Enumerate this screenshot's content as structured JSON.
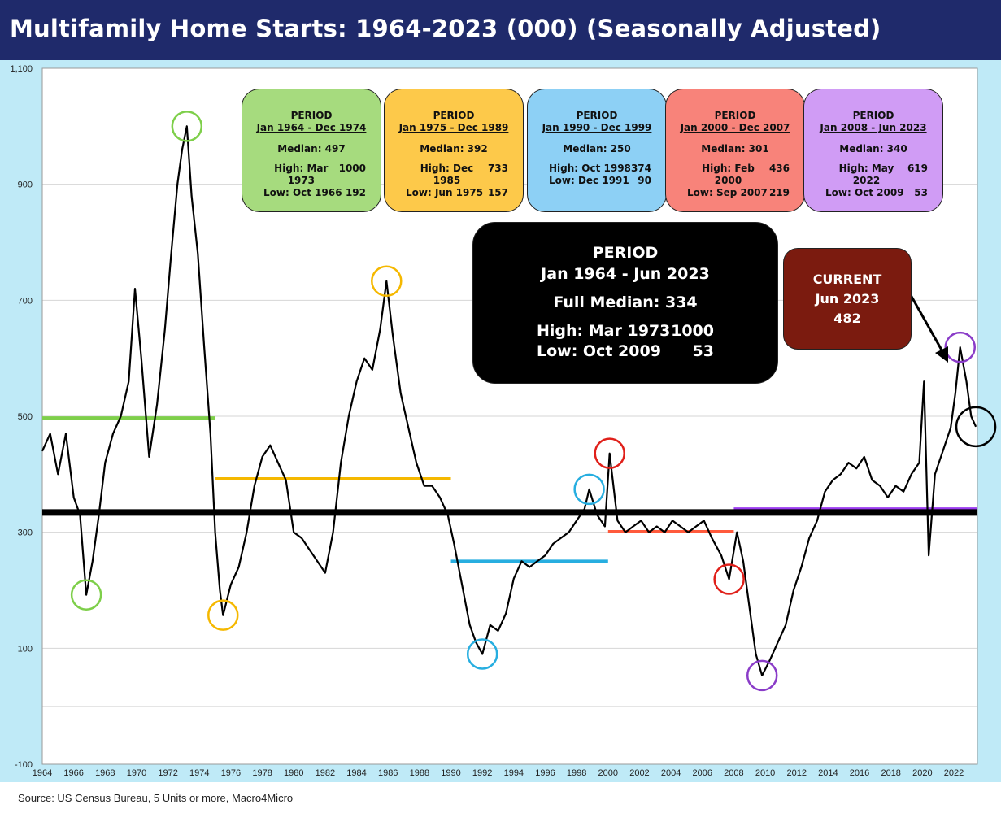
{
  "title": "Multifamily Home Starts: 1964-2023 (000) (Seasonally Adjusted)",
  "source": "Source: US Census Bureau, 5 Units or more, Macro4Micro",
  "period_boxes": [
    {
      "title": "PERIOD",
      "range": "Jan 1964 - Dec 1974",
      "median": "Median: 497",
      "high_label": "High:  Mar 1973",
      "high_value": "1000",
      "low_label": "Low:   Oct 1966",
      "low_value": "192",
      "color": "#a6db7e"
    },
    {
      "title": "PERIOD",
      "range": "Jan 1975 - Dec 1989",
      "median": "Median: 392",
      "high_label": "High:  Dec 1985",
      "high_value": "733",
      "low_label": "Low:  Jun 1975",
      "low_value": "157",
      "color": "#fdc94a"
    },
    {
      "title": "PERIOD",
      "range": "Jan 1990 - Dec 1999",
      "median": "Median: 250",
      "high_label": "High:  Oct 1998",
      "high_value": "374",
      "low_label": "Low:  Dec 1991",
      "low_value": "90",
      "color": "#8dd0f5"
    },
    {
      "title": "PERIOD",
      "range": "Jan 2000 - Dec 2007",
      "median": "Median: 301",
      "high_label": "High:  Feb 2000",
      "high_value": "436",
      "low_label": "Low:  Sep 2007",
      "low_value": "219",
      "color": "#f8837a"
    },
    {
      "title": "PERIOD",
      "range": "Jan 2008 - Jun 2023",
      "median": "Median: 340",
      "high_label": "High:  May 2022",
      "high_value": "619",
      "low_label": "Low:  Oct 2009",
      "low_value": "53",
      "color": "#d09cf5"
    }
  ],
  "full_box": {
    "title": "PERIOD",
    "range": "Jan 1964 - Jun 2023",
    "median": "Full Median: 334",
    "high_label": "High:  Mar 1973",
    "high_value": "1000",
    "low_label": "Low:  Oct 2009",
    "low_value": "53"
  },
  "current_box": {
    "title": "CURRENT",
    "date": "Jun 2023",
    "value": "482"
  },
  "chart_data": {
    "type": "line",
    "title": "Multifamily Home Starts: 1964-2023 (000) (Seasonally Adjusted)",
    "xlabel": "",
    "ylabel": "",
    "xlim": [
      1964,
      2023.5
    ],
    "ylim": [
      -100,
      1100
    ],
    "y_ticks": [
      -100,
      100,
      300,
      500,
      700,
      900,
      1100
    ],
    "y_tick_labels": [
      "-100",
      "100",
      "300",
      "500",
      "700",
      "900",
      "1,100"
    ],
    "x_ticks": [
      1964,
      1966,
      1968,
      1970,
      1972,
      1974,
      1976,
      1978,
      1980,
      1982,
      1984,
      1986,
      1988,
      1990,
      1992,
      1994,
      1996,
      1998,
      2000,
      2002,
      2004,
      2006,
      2008,
      2010,
      2012,
      2014,
      2016,
      2018,
      2020,
      2022
    ],
    "grid": "horizontal",
    "series": [
      {
        "color": "#000000",
        "points": [
          [
            1964.0,
            440
          ],
          [
            1964.5,
            470
          ],
          [
            1965.0,
            400
          ],
          [
            1965.5,
            470
          ],
          [
            1966.0,
            360
          ],
          [
            1966.4,
            330
          ],
          [
            1966.8,
            192
          ],
          [
            1967.2,
            250
          ],
          [
            1967.6,
            330
          ],
          [
            1968.0,
            420
          ],
          [
            1968.5,
            470
          ],
          [
            1969.0,
            500
          ],
          [
            1969.5,
            560
          ],
          [
            1969.9,
            720
          ],
          [
            1970.3,
            600
          ],
          [
            1970.8,
            430
          ],
          [
            1971.3,
            520
          ],
          [
            1971.8,
            650
          ],
          [
            1972.2,
            780
          ],
          [
            1972.6,
            900
          ],
          [
            1972.9,
            960
          ],
          [
            1973.2,
            1000
          ],
          [
            1973.5,
            880
          ],
          [
            1973.9,
            780
          ],
          [
            1974.3,
            620
          ],
          [
            1974.7,
            470
          ],
          [
            1975.0,
            300
          ],
          [
            1975.3,
            200
          ],
          [
            1975.5,
            157
          ],
          [
            1976.0,
            210
          ],
          [
            1976.5,
            240
          ],
          [
            1977.0,
            300
          ],
          [
            1977.5,
            380
          ],
          [
            1978.0,
            430
          ],
          [
            1978.5,
            450
          ],
          [
            1979.0,
            420
          ],
          [
            1979.5,
            390
          ],
          [
            1980.0,
            300
          ],
          [
            1980.5,
            290
          ],
          [
            1981.0,
            270
          ],
          [
            1981.5,
            250
          ],
          [
            1982.0,
            230
          ],
          [
            1982.5,
            300
          ],
          [
            1983.0,
            420
          ],
          [
            1983.5,
            500
          ],
          [
            1984.0,
            560
          ],
          [
            1984.5,
            600
          ],
          [
            1985.0,
            580
          ],
          [
            1985.5,
            650
          ],
          [
            1985.9,
            733
          ],
          [
            1986.3,
            640
          ],
          [
            1986.8,
            540
          ],
          [
            1987.3,
            480
          ],
          [
            1987.8,
            420
          ],
          [
            1988.3,
            380
          ],
          [
            1988.8,
            380
          ],
          [
            1989.3,
            360
          ],
          [
            1989.8,
            330
          ],
          [
            1990.2,
            280
          ],
          [
            1990.7,
            210
          ],
          [
            1991.2,
            140
          ],
          [
            1991.6,
            110
          ],
          [
            1992.0,
            90
          ],
          [
            1992.5,
            140
          ],
          [
            1993.0,
            130
          ],
          [
            1993.5,
            160
          ],
          [
            1994.0,
            220
          ],
          [
            1994.5,
            250
          ],
          [
            1995.0,
            240
          ],
          [
            1995.5,
            250
          ],
          [
            1996.0,
            260
          ],
          [
            1996.5,
            280
          ],
          [
            1997.0,
            290
          ],
          [
            1997.5,
            300
          ],
          [
            1998.0,
            320
          ],
          [
            1998.5,
            340
          ],
          [
            1998.8,
            374
          ],
          [
            1999.3,
            330
          ],
          [
            1999.8,
            310
          ],
          [
            2000.1,
            436
          ],
          [
            2000.6,
            320
          ],
          [
            2001.1,
            300
          ],
          [
            2001.6,
            310
          ],
          [
            2002.1,
            320
          ],
          [
            2002.6,
            300
          ],
          [
            2003.1,
            310
          ],
          [
            2003.6,
            300
          ],
          [
            2004.1,
            320
          ],
          [
            2004.6,
            310
          ],
          [
            2005.1,
            300
          ],
          [
            2005.6,
            310
          ],
          [
            2006.1,
            320
          ],
          [
            2006.6,
            290
          ],
          [
            2007.2,
            260
          ],
          [
            2007.7,
            219
          ],
          [
            2008.2,
            300
          ],
          [
            2008.6,
            250
          ],
          [
            2009.0,
            170
          ],
          [
            2009.4,
            90
          ],
          [
            2009.8,
            53
          ],
          [
            2010.3,
            80
          ],
          [
            2010.8,
            110
          ],
          [
            2011.3,
            140
          ],
          [
            2011.8,
            200
          ],
          [
            2012.3,
            240
          ],
          [
            2012.8,
            290
          ],
          [
            2013.3,
            320
          ],
          [
            2013.8,
            370
          ],
          [
            2014.3,
            390
          ],
          [
            2014.8,
            400
          ],
          [
            2015.3,
            420
          ],
          [
            2015.8,
            410
          ],
          [
            2016.3,
            430
          ],
          [
            2016.8,
            390
          ],
          [
            2017.3,
            380
          ],
          [
            2017.8,
            360
          ],
          [
            2018.3,
            380
          ],
          [
            2018.8,
            370
          ],
          [
            2019.3,
            400
          ],
          [
            2019.8,
            420
          ],
          [
            2020.1,
            560
          ],
          [
            2020.4,
            260
          ],
          [
            2020.8,
            400
          ],
          [
            2021.3,
            440
          ],
          [
            2021.8,
            480
          ],
          [
            2022.1,
            540
          ],
          [
            2022.4,
            619
          ],
          [
            2022.8,
            560
          ],
          [
            2023.1,
            500
          ],
          [
            2023.4,
            482
          ]
        ]
      }
    ],
    "medians": [
      {
        "label": "Jan 1964 - Dec 1974",
        "start": 1964.0,
        "end": 1975.0,
        "value": 497,
        "color": "#7ecf4a"
      },
      {
        "label": "Jan 1975 - Dec 1989",
        "start": 1975.0,
        "end": 1990.0,
        "value": 392,
        "color": "#f5b800"
      },
      {
        "label": "Jan 1990 - Dec 1999",
        "start": 1990.0,
        "end": 2000.0,
        "value": 250,
        "color": "#27aee0"
      },
      {
        "label": "Jan 2000 - Dec 2007",
        "start": 2000.0,
        "end": 2008.0,
        "value": 301,
        "color": "#ff5a3c"
      },
      {
        "label": "Jan 2008 - Jun 2023",
        "start": 2008.0,
        "end": 2023.5,
        "value": 340,
        "color": "#9b3cf0"
      },
      {
        "label": "Jan 1964 - Jun 2023",
        "start": 1964.0,
        "end": 2023.5,
        "value": 334,
        "color": "#000000"
      }
    ],
    "markers": [
      {
        "label": "High Mar 1973",
        "x": 1973.2,
        "y": 1000,
        "color": "#7ecf4a"
      },
      {
        "label": "Low Oct 1966",
        "x": 1966.8,
        "y": 192,
        "color": "#7ecf4a"
      },
      {
        "label": "High Dec 1985",
        "x": 1985.9,
        "y": 733,
        "color": "#f5b800"
      },
      {
        "label": "Low Jun 1975",
        "x": 1975.5,
        "y": 157,
        "color": "#f5b800"
      },
      {
        "label": "High Oct 1998",
        "x": 1998.8,
        "y": 374,
        "color": "#27aee0"
      },
      {
        "label": "Low Dec 1991",
        "x": 1992.0,
        "y": 90,
        "color": "#27aee0"
      },
      {
        "label": "High Feb 2000",
        "x": 2000.1,
        "y": 436,
        "color": "#e0201a"
      },
      {
        "label": "Low Sep 2007",
        "x": 2007.7,
        "y": 219,
        "color": "#e0201a"
      },
      {
        "label": "High May 2022",
        "x": 2022.4,
        "y": 619,
        "color": "#8a3cc8"
      },
      {
        "label": "Low Oct 2009",
        "x": 2009.8,
        "y": 53,
        "color": "#8a3cc8"
      },
      {
        "label": "Current Jun 2023",
        "x": 2023.4,
        "y": 482,
        "color": "#000000"
      }
    ]
  }
}
